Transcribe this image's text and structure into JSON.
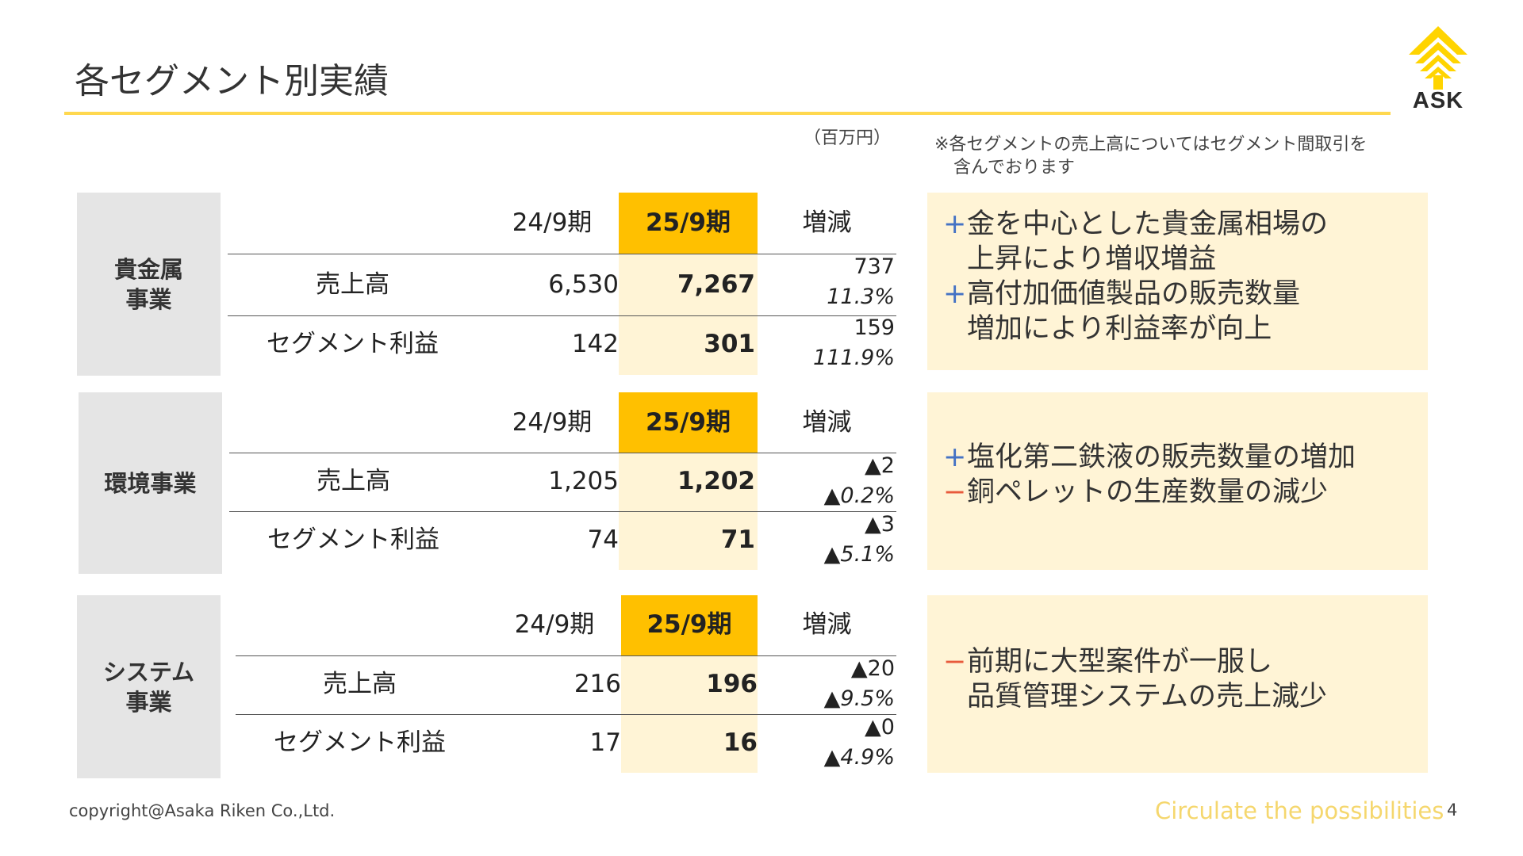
{
  "page": {
    "title": "各セグメント別実績",
    "unit": "（百万円）",
    "note_line1": "※各セグメントの売上高についてはセグメント間取引を",
    "note_line2": "含んでおります",
    "logo_text": "ASK",
    "copyright": "copyright@Asaka Riken Co.,Ltd.",
    "tagline": "Circulate the possibilities",
    "page_number": "4"
  },
  "colors": {
    "accent": "#FFC000",
    "highlight": "#FFF4D6",
    "label_bg": "#E5E5E5",
    "plus": "#4472C4",
    "minus": "#E85A3C",
    "rule": "#FFD84F"
  },
  "segments": [
    {
      "label_line1": "貴金属",
      "label_line2": "事業",
      "col_prev": "24/9期",
      "col_curr": "25/9期",
      "col_diff": "増減",
      "rows": [
        {
          "label": "売上高",
          "prev": "6,530",
          "curr": "7,267",
          "diff": "737",
          "pct": "11.3%"
        },
        {
          "label": "セグメント利益",
          "prev": "142",
          "curr": "301",
          "diff": "159",
          "pct": "111.9%"
        }
      ],
      "comments": [
        {
          "mark": "+",
          "text": "金を中心とした貴金属相場の"
        },
        {
          "mark": "",
          "text": "上昇により増収増益"
        },
        {
          "mark": "+",
          "text": "高付加価値製品の販売数量"
        },
        {
          "mark": "",
          "text": "増加により利益率が向上"
        }
      ]
    },
    {
      "label_line1": "環境事業",
      "label_line2": "",
      "col_prev": "24/9期",
      "col_curr": "25/9期",
      "col_diff": "増減",
      "rows": [
        {
          "label": "売上高",
          "prev": "1,205",
          "curr": "1,202",
          "diff": "▲2",
          "pct": "▲0.2%"
        },
        {
          "label": "セグメント利益",
          "prev": "74",
          "curr": "71",
          "diff": "▲3",
          "pct": "▲5.1%"
        }
      ],
      "comments": [
        {
          "mark": "+",
          "text": "塩化第二鉄液の販売数量の増加"
        },
        {
          "mark": "−",
          "text": "銅ペレットの生産数量の減少"
        }
      ]
    },
    {
      "label_line1": "システム",
      "label_line2": "事業",
      "col_prev": "24/9期",
      "col_curr": "25/9期",
      "col_diff": "増減",
      "rows": [
        {
          "label": "売上高",
          "prev": "216",
          "curr": "196",
          "diff": "▲20",
          "pct": "▲9.5%"
        },
        {
          "label": "セグメント利益",
          "prev": "17",
          "curr": "16",
          "diff": "▲0",
          "pct": "▲4.9%"
        }
      ],
      "comments": [
        {
          "mark": "−",
          "text": "前期に大型案件が一服し"
        },
        {
          "mark": "",
          "text": "品質管理システムの売上減少"
        }
      ]
    }
  ]
}
